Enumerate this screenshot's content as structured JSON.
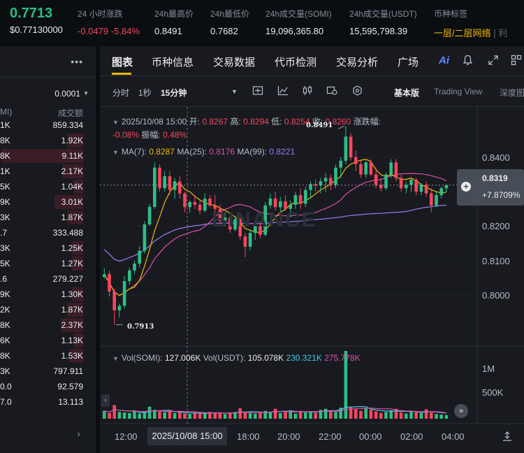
{
  "ticker": {
    "last_price": "0.7713",
    "last_price_usd": "$0.77130000",
    "stats": [
      {
        "label": "24 小时涨跌",
        "value": "-0.0479 -5.84%",
        "tone": "red"
      },
      {
        "label": "24h最高价",
        "value": "0.8491",
        "tone": "white"
      },
      {
        "label": "24h最低价",
        "value": "0.7682",
        "tone": "white"
      },
      {
        "label": "24h成交量(SOMI)",
        "value": "19,096,365.80",
        "tone": "white"
      },
      {
        "label": "24h成交量(USDT)",
        "value": "15,595,798.39",
        "tone": "white"
      },
      {
        "label": "币种标签",
        "value": "一层/二层网络",
        "tone": "gold"
      }
    ],
    "tag_suffix": "| 利"
  },
  "orderbook": {
    "menu_icon": "more-dots-icon",
    "tick_size": "0.0001",
    "col_left": "MI)",
    "col_right": "成交额",
    "rows": [
      {
        "left": "1K",
        "right": "859.334",
        "depth": 0.0
      },
      {
        "left": "8K",
        "right": "1.92K",
        "depth": 0.2
      },
      {
        "left": "8K",
        "right": "9.11K",
        "depth": 1.0
      },
      {
        "left": "1K",
        "right": "2.17K",
        "depth": 0.25
      },
      {
        "left": "5K",
        "right": "1.04K",
        "depth": 0.12
      },
      {
        "left": "9K",
        "right": "3.01K",
        "depth": 0.35
      },
      {
        "left": "3K",
        "right": "1.87K",
        "depth": 0.2
      },
      {
        "left": ".7",
        "right": "333.488",
        "depth": 0.0
      },
      {
        "left": "3K",
        "right": "1.25K",
        "depth": 0.14
      },
      {
        "left": "5K",
        "right": "1.27K",
        "depth": 0.14
      },
      {
        "left": ".6",
        "right": "279.227",
        "depth": 0.0
      },
      {
        "left": "9K",
        "right": "1.30K",
        "depth": 0.14
      },
      {
        "left": "2K",
        "right": "1.87K",
        "depth": 0.2
      },
      {
        "left": "8K",
        "right": "2.37K",
        "depth": 0.27
      },
      {
        "left": "6K",
        "right": "1.13K",
        "depth": 0.12
      },
      {
        "left": "8K",
        "right": "1.53K",
        "depth": 0.17
      },
      {
        "left": "3K",
        "right": "797.911",
        "depth": 0.0
      },
      {
        "left": "0.0",
        "right": "92.579",
        "depth": 0.0
      },
      {
        "left": "7.0",
        "right": "13.113",
        "depth": 0.0
      }
    ],
    "more_arrow": "›"
  },
  "tabs": [
    "图表",
    "币种信息",
    "交易数据",
    "代币检测",
    "交易分析",
    "广场"
  ],
  "header_icons": [
    "ai-icon",
    "bell-icon",
    "expand-icon",
    "grid-icon"
  ],
  "timeframes": [
    "分时",
    "1秒",
    "15分钟"
  ],
  "toolbar_icons": [
    "dropdown-caret-icon",
    "indicator-icon",
    "line-tool-icon",
    "candle-style-icon",
    "settings-icon",
    "hexagon-icon"
  ],
  "views": [
    "基本版",
    "Trading View",
    "深度图"
  ],
  "legend": {
    "date": "2025/10/08 15:00",
    "open_label": "开:",
    "open": "0.8267",
    "high_label": "高:",
    "high": "0.8294",
    "low_label": "低:",
    "low": "0.8254",
    "close_label": "收:",
    "close": "0.8260",
    "change_label": "涨跌幅:",
    "change": "-0.08%",
    "amp_label": "振幅:",
    "amp": "0.48%",
    "ma7_label": "MA(7):",
    "ma7": "0.8287",
    "ma25_label": "MA(25):",
    "ma25": "0.8176",
    "ma99_label": "MA(99):",
    "ma99": "0.8221",
    "vol_somi_label": "Vol(SOMI):",
    "vol_somi": "127.006K",
    "vol_usdt_label": "Vol(USDT):",
    "vol_usdt": "105.078K",
    "vol_ma1": "230.321K",
    "vol_ma2": "275.778K"
  },
  "current_price_tag": {
    "price": "0.8319",
    "change": "+7.8709%"
  },
  "high_marker": "0.8491",
  "low_marker": "0.7913",
  "watermark": "BINANCE",
  "chart_data": {
    "type": "candlestick",
    "interval": "15分钟",
    "y_ticks": [
      "0.8400",
      "0.8200",
      "0.8100",
      "0.8000"
    ],
    "y_tick_values": [
      0.84,
      0.82,
      0.81,
      0.8
    ],
    "vol_ticks": [
      "1M",
      "500K"
    ],
    "x_labels": [
      "12:00",
      "2025/10/08 15:00",
      "18:00",
      "20:00",
      "22:00",
      "00:00",
      "02:00",
      "04:00"
    ],
    "colors": {
      "up": "#2ebd85",
      "down": "#f6465d",
      "ma7": "#f0b90b",
      "ma25": "#e04fa8",
      "ma99": "#9e7cf2",
      "vol_ma1": "#46c8e4",
      "vol_ma2": "#e04fa8"
    },
    "candles": [
      [
        0.8052,
        0.8078,
        0.8048,
        0.806
      ],
      [
        0.806,
        0.807,
        0.7995,
        0.801
      ],
      [
        0.801,
        0.8018,
        0.7913,
        0.7955
      ],
      [
        0.7955,
        0.7975,
        0.7935,
        0.7968
      ],
      [
        0.7968,
        0.8055,
        0.796,
        0.804
      ],
      [
        0.804,
        0.808,
        0.803,
        0.8071
      ],
      [
        0.8071,
        0.81,
        0.806,
        0.8091
      ],
      [
        0.8091,
        0.8142,
        0.808,
        0.8128
      ],
      [
        0.8128,
        0.8215,
        0.812,
        0.8205
      ],
      [
        0.8205,
        0.8265,
        0.82,
        0.8256
      ],
      [
        0.8256,
        0.8385,
        0.825,
        0.837
      ],
      [
        0.837,
        0.838,
        0.83,
        0.831
      ],
      [
        0.831,
        0.836,
        0.83,
        0.8345
      ],
      [
        0.8345,
        0.836,
        0.829,
        0.8305
      ],
      [
        0.8305,
        0.834,
        0.828,
        0.833
      ],
      [
        0.833,
        0.8345,
        0.828,
        0.8295
      ],
      [
        0.8295,
        0.83,
        0.824,
        0.8255
      ],
      [
        0.8255,
        0.8275,
        0.824,
        0.827
      ],
      [
        0.827,
        0.829,
        0.825,
        0.8262
      ],
      [
        0.8262,
        0.8275,
        0.8235,
        0.8245
      ],
      [
        0.8245,
        0.8295,
        0.824,
        0.828
      ],
      [
        0.828,
        0.829,
        0.8255,
        0.826
      ],
      [
        0.826,
        0.829,
        0.824,
        0.825
      ],
      [
        0.825,
        0.8262,
        0.82,
        0.8215
      ],
      [
        0.8215,
        0.824,
        0.82,
        0.8225
      ],
      [
        0.8225,
        0.8235,
        0.818,
        0.819
      ],
      [
        0.819,
        0.823,
        0.8185,
        0.822
      ],
      [
        0.822,
        0.8225,
        0.816,
        0.817
      ],
      [
        0.817,
        0.818,
        0.811,
        0.814
      ],
      [
        0.814,
        0.819,
        0.813,
        0.818
      ],
      [
        0.818,
        0.8205,
        0.816,
        0.82
      ],
      [
        0.82,
        0.8215,
        0.8165,
        0.8175
      ],
      [
        0.8175,
        0.827,
        0.817,
        0.826
      ],
      [
        0.826,
        0.8295,
        0.825,
        0.828
      ],
      [
        0.828,
        0.83,
        0.8245,
        0.8255
      ],
      [
        0.8255,
        0.8285,
        0.824,
        0.8272
      ],
      [
        0.8272,
        0.829,
        0.8245,
        0.825
      ],
      [
        0.825,
        0.8275,
        0.8225,
        0.8262
      ],
      [
        0.8262,
        0.83,
        0.825,
        0.829
      ],
      [
        0.829,
        0.831,
        0.825,
        0.8265
      ],
      [
        0.8265,
        0.8315,
        0.8255,
        0.8305
      ],
      [
        0.8305,
        0.833,
        0.828,
        0.8322
      ],
      [
        0.8322,
        0.8335,
        0.83,
        0.8318
      ],
      [
        0.8318,
        0.834,
        0.8295,
        0.833
      ],
      [
        0.833,
        0.8355,
        0.83,
        0.834
      ],
      [
        0.834,
        0.835,
        0.8305,
        0.832
      ],
      [
        0.832,
        0.838,
        0.831,
        0.837
      ],
      [
        0.837,
        0.84,
        0.834,
        0.839
      ],
      [
        0.839,
        0.8491,
        0.838,
        0.846
      ],
      [
        0.846,
        0.847,
        0.839,
        0.84
      ],
      [
        0.84,
        0.842,
        0.836,
        0.838
      ],
      [
        0.838,
        0.839,
        0.834,
        0.835
      ],
      [
        0.835,
        0.839,
        0.834,
        0.8385
      ],
      [
        0.8385,
        0.8395,
        0.8345,
        0.835
      ],
      [
        0.835,
        0.837,
        0.831,
        0.832
      ],
      [
        0.832,
        0.8335,
        0.83,
        0.831
      ],
      [
        0.831,
        0.8355,
        0.8305,
        0.835
      ],
      [
        0.835,
        0.8395,
        0.834,
        0.8385
      ],
      [
        0.8385,
        0.8395,
        0.833,
        0.834
      ],
      [
        0.834,
        0.835,
        0.83,
        0.831
      ],
      [
        0.831,
        0.833,
        0.8295,
        0.832
      ],
      [
        0.832,
        0.834,
        0.83,
        0.8335
      ],
      [
        0.8335,
        0.834,
        0.829,
        0.83
      ],
      [
        0.83,
        0.8325,
        0.829,
        0.832
      ],
      [
        0.832,
        0.833,
        0.8285,
        0.8295
      ],
      [
        0.8295,
        0.831,
        0.824,
        0.826
      ],
      [
        0.826,
        0.83,
        0.8255,
        0.829
      ],
      [
        0.829,
        0.8315,
        0.828,
        0.831
      ],
      [
        0.831,
        0.832,
        0.83,
        0.8319
      ]
    ],
    "volumes": [
      150,
      110,
      260,
      130,
      120,
      110,
      140,
      100,
      130,
      230,
      170,
      140,
      120,
      140,
      110,
      130,
      100,
      90,
      120,
      110,
      100,
      130,
      110,
      120,
      90,
      110,
      130,
      200,
      120,
      110,
      100,
      120,
      150,
      130,
      190,
      110,
      140,
      160,
      100,
      150,
      120,
      140,
      110,
      170,
      190,
      160,
      130,
      210,
      1300,
      220,
      180,
      150,
      200,
      170,
      140,
      110,
      130,
      160,
      190,
      120,
      100,
      140,
      130,
      110,
      180,
      120,
      90,
      80,
      70
    ]
  }
}
